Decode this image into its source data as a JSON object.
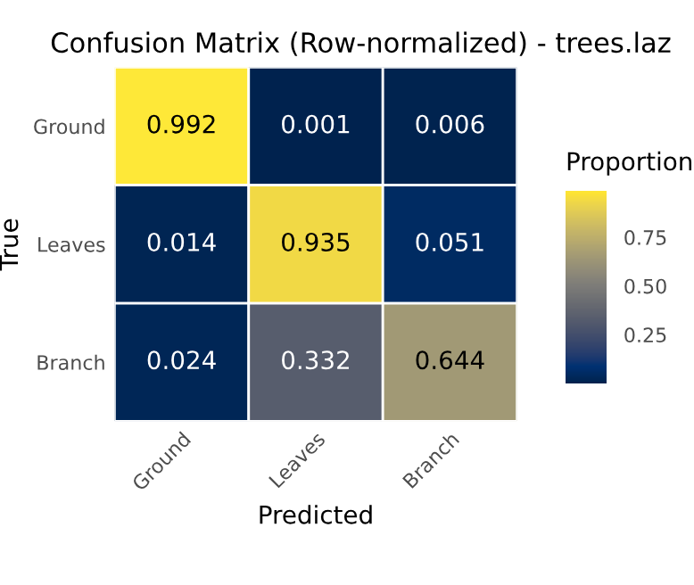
{
  "chart_data": {
    "type": "heatmap",
    "title": "Confusion Matrix (Row-normalized) - trees.laz",
    "xlabel": "Predicted",
    "ylabel": "True",
    "clabel": "Proportion",
    "categories": [
      "Ground",
      "Leaves",
      "Branch"
    ],
    "y_categories": [
      "Ground",
      "Leaves",
      "Branch"
    ],
    "cells": [
      [
        0.992,
        0.001,
        0.006
      ],
      [
        0.014,
        0.935,
        0.051
      ],
      [
        0.024,
        0.332,
        0.644
      ]
    ],
    "clim": [
      0.001,
      0.992
    ],
    "cticks": [
      0.25,
      {
        "value": 0.5,
        "label": "0.50"
      },
      0.75
    ],
    "data_labels": true,
    "grid": false
  }
}
